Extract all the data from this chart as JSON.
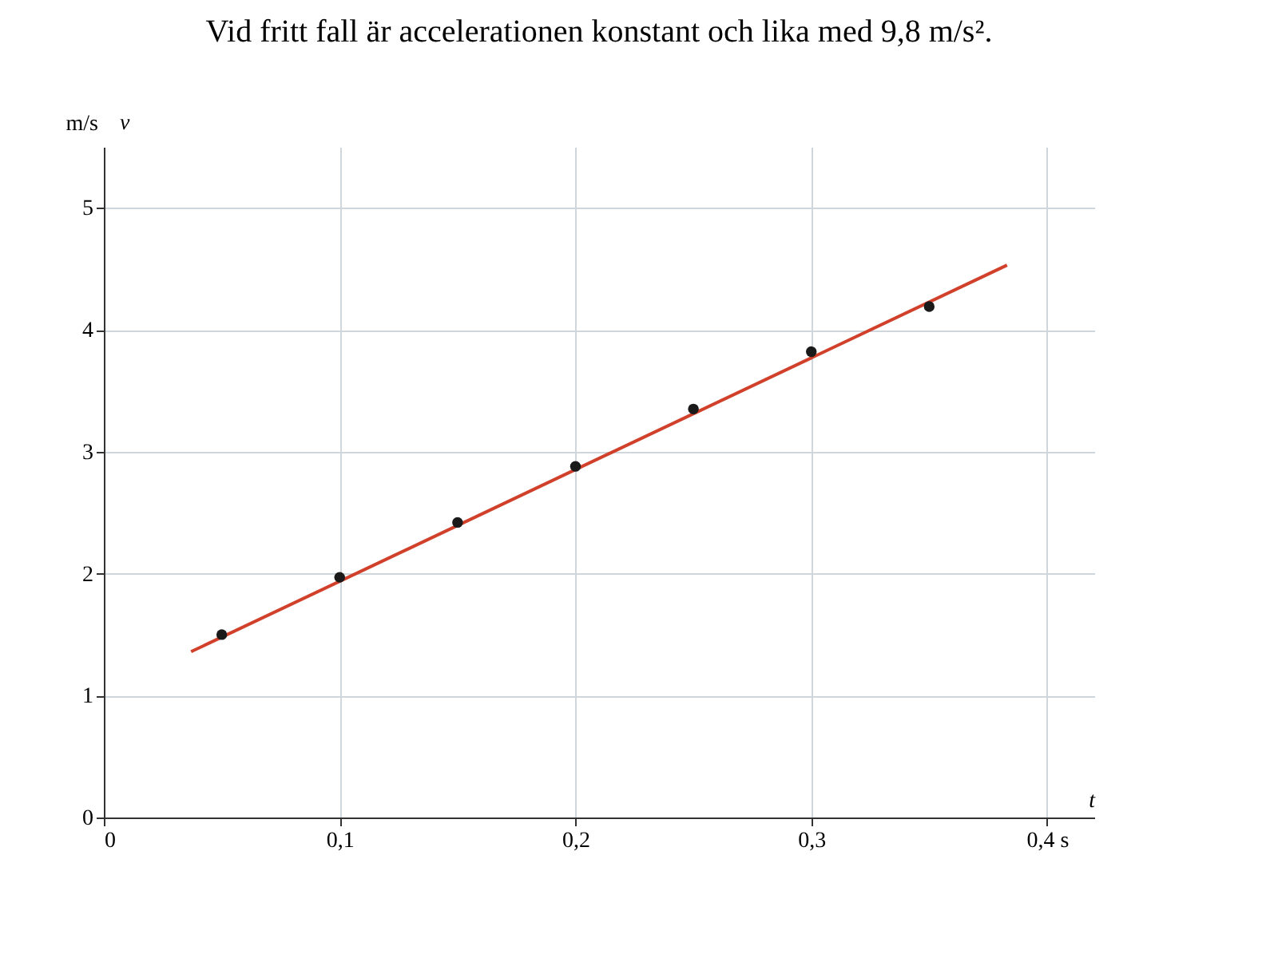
{
  "chart_data": {
    "type": "scatter",
    "title": "Vid fritt fall är accelerationen konstant och lika med 9,8 m/s².",
    "xlabel": "t",
    "ylabel": "m/s",
    "annotations": [
      "v"
    ],
    "xlim": [
      0,
      0.42
    ],
    "ylim": [
      0,
      5.5
    ],
    "xticks": [
      0,
      {
        "value": 0.1,
        "label": "0,1"
      },
      {
        "value": 0.2,
        "label": "0,2"
      },
      {
        "value": 0.3,
        "label": "0,3"
      },
      {
        "value": 0.4,
        "label": "0,4 s"
      }
    ],
    "yticks": [
      0,
      1,
      2,
      3,
      4,
      5
    ],
    "grid": true,
    "series": [
      {
        "type": "line",
        "marker": "none",
        "color": "#d0402a",
        "x": [
          0.037,
          0.383
        ],
        "values": [
          1.36,
          4.53
        ]
      },
      {
        "marker": "circle",
        "color": "#1a1a1a",
        "x": [
          0.05,
          0.1,
          0.15,
          0.2,
          0.25,
          0.3,
          0.35
        ],
        "values": [
          1.5,
          1.97,
          2.42,
          2.88,
          3.35,
          3.82,
          4.19
        ]
      }
    ]
  }
}
